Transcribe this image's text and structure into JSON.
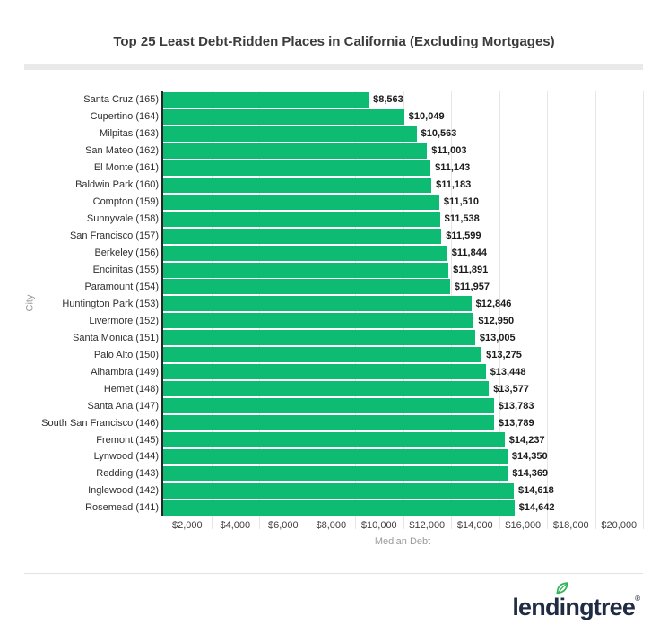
{
  "title": "Top 25 Least Debt-Ridden Places in California (Excluding Mortgages)",
  "chart_data": {
    "type": "bar",
    "orientation": "horizontal",
    "title": "Top 25 Least Debt-Ridden Places in California (Excluding Mortgages)",
    "xlabel": "Median Debt",
    "ylabel": "City",
    "xlim": [
      0,
      20650
    ],
    "grid": true,
    "legend": "none",
    "categories": [
      "Santa Cruz (165)",
      "Cupertino (164)",
      "Milpitas (163)",
      "San Mateo (162)",
      "El Monte (161)",
      "Baldwin Park (160)",
      "Compton (159)",
      "Sunnyvale (158)",
      "San Francisco (157)",
      "Berkeley (156)",
      "Encinitas (155)",
      "Paramount (154)",
      "Huntington Park (153)",
      "Livermore (152)",
      "Santa Monica (151)",
      "Palo Alto (150)",
      "Alhambra (149)",
      "Hemet (148)",
      "Santa Ana (147)",
      "South San Francisco (146)",
      "Fremont (145)",
      "Lynwood (144)",
      "Redding (143)",
      "Inglewood (142)",
      "Rosemead (141)"
    ],
    "values": [
      8563,
      10049,
      10563,
      11003,
      11143,
      11183,
      11510,
      11538,
      11599,
      11844,
      11891,
      11957,
      12846,
      12950,
      13005,
      13275,
      13448,
      13577,
      13783,
      13789,
      14237,
      14350,
      14369,
      14618,
      14642
    ],
    "value_labels": [
      "$8,563",
      "$10,049",
      "$10,563",
      "$11,003",
      "$11,143",
      "$11,183",
      "$11,510",
      "$11,538",
      "$11,599",
      "$11,844",
      "$11,891",
      "$11,957",
      "$12,846",
      "$12,950",
      "$13,005",
      "$13,275",
      "$13,448",
      "$13,577",
      "$13,783",
      "$13,789",
      "$14,237",
      "$14,350",
      "$14,369",
      "$14,618",
      "$14,642"
    ],
    "x_ticks": [
      {
        "value": 2000,
        "label": "$2,000"
      },
      {
        "value": 4000,
        "label": "$4,000"
      },
      {
        "value": 6000,
        "label": "$6,000"
      },
      {
        "value": 8000,
        "label": "$8,000"
      },
      {
        "value": 10000,
        "label": "$10,000"
      },
      {
        "value": 12000,
        "label": "$12,000"
      },
      {
        "value": 14000,
        "label": "$14,000"
      },
      {
        "value": 16000,
        "label": "$16,000"
      },
      {
        "value": 18000,
        "label": "$18,000"
      },
      {
        "value": 20000,
        "label": "$20,000"
      }
    ]
  },
  "colors": {
    "bar": "#0dbc72",
    "axis_line": "#262626",
    "gridline": "#e6e6e6",
    "title": "#3b3b3b",
    "value_label": "#1b1b1b",
    "category_label": "#2e2e2e",
    "tick_label": "#3f3f3f",
    "axis_title": "#9b9b9b",
    "divider": "#e9e9e9",
    "footer_line": "#e3e3e3",
    "logo_navy": "#1f2c44",
    "logo_green": "#2fb457"
  },
  "logo": {
    "pre": "lend",
    "i": "i",
    "post": "ngtree",
    "registered": "®"
  }
}
